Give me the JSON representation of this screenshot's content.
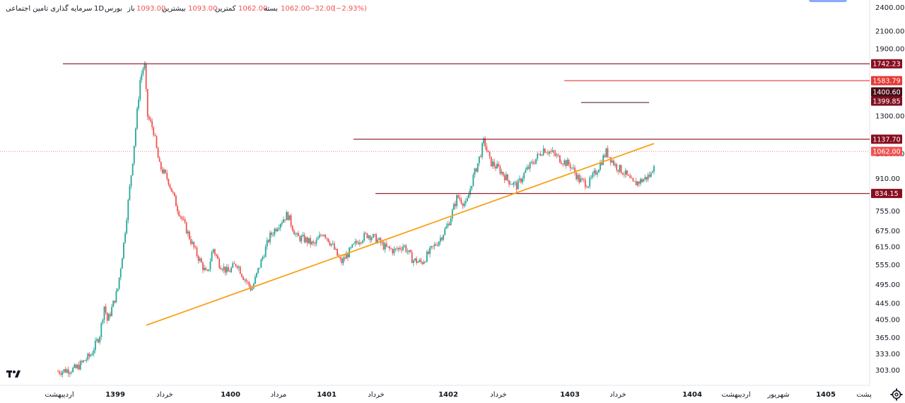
{
  "header": {
    "symbol": "سرمایه گذاری تامین اجتماعی",
    "interval": "1D",
    "exchange": "بورس",
    "open_label": "باز",
    "open": "1093.00",
    "high_label": "بیشترین",
    "high": "1093.00",
    "low_label": "کمترین",
    "low": "1062.00",
    "close_label": "بسته",
    "close": "1062.00",
    "change": "−32.00",
    "change_pct": "(−2.93%)"
  },
  "colors": {
    "up": "#26a69a",
    "down": "#ef5350",
    "trendline": "#f7a21b",
    "hline": "#880e1f",
    "hline_light": "#e53935",
    "grid_text": "#131722"
  },
  "icons": {
    "logo": "tradingview-logo-icon",
    "settings": "gear-icon"
  },
  "chart_data": {
    "type": "candlestick",
    "y_scale": "log",
    "ylim": [
      285,
      2500
    ],
    "y_ticks": [
      2400,
      2100,
      1900,
      1300,
      1050,
      910,
      755,
      675,
      615,
      555,
      495,
      445,
      405,
      365,
      333,
      303
    ],
    "y_tick_labels": [
      "2400.00",
      "2100.00",
      "1900.00",
      "1300.00",
      "1050.00",
      "910.00",
      "755.00",
      "675.00",
      "615.00",
      "555.00",
      "495.00",
      "445.00",
      "405.00",
      "365.00",
      "333.00",
      "303.00"
    ],
    "x_labels": [
      "اردیبهشت",
      "1399",
      "خرداد",
      "1400",
      "مرداد",
      "1401",
      "خرداد",
      "1402",
      "خرداد",
      "1403",
      "خرداد",
      "1404",
      "اردیبهشت",
      "شهریور",
      "1405",
      "پشت"
    ],
    "x_bold": [
      false,
      true,
      false,
      true,
      false,
      true,
      false,
      true,
      false,
      true,
      false,
      true,
      false,
      false,
      true,
      false
    ],
    "price_labels": [
      {
        "value": 1742.23,
        "text": "1742.23",
        "color": "#880e1f"
      },
      {
        "value": 1583.79,
        "text": "1583.79",
        "color": "#e53935"
      },
      {
        "value": 1400.6,
        "text": "1400.60",
        "color": "#4a0e16"
      },
      {
        "value": 1399.85,
        "text": "1399.85",
        "color": "#7f1020"
      },
      {
        "value": 1137.7,
        "text": "1137.70",
        "color": "#880e1f"
      },
      {
        "value": 1062.0,
        "text": "1062.00",
        "color": "#ef5350"
      },
      {
        "value": 834.15,
        "text": "834.15",
        "color": "#880e1f"
      }
    ],
    "horizontal_levels": [
      {
        "value": 1742.23,
        "from": "1399-اردیبهشت",
        "to": "end",
        "color": "#880e1f"
      },
      {
        "value": 1583.79,
        "from": "1403",
        "to": "end",
        "color": "#e53935"
      },
      {
        "value": 1399.85,
        "from": "1403-خرداد",
        "to": "1403-تیر",
        "color": "#4a0e16"
      },
      {
        "value": 1137.7,
        "from": "1401",
        "to": "end",
        "color": "#880e1f"
      },
      {
        "value": 834.15,
        "from": "1401",
        "to": "end",
        "color": "#880e1f"
      }
    ],
    "last_price": 1062.0,
    "trendline": [
      {
        "x": 0.12,
        "y": 390
      },
      {
        "x": 0.72,
        "y": 1130
      }
    ],
    "path": [
      [
        0.0,
        300
      ],
      [
        0.03,
        305
      ],
      [
        0.055,
        330
      ],
      [
        0.07,
        370
      ],
      [
        0.078,
        440
      ],
      [
        0.083,
        400
      ],
      [
        0.09,
        430
      ],
      [
        0.1,
        480
      ],
      [
        0.11,
        620
      ],
      [
        0.125,
        1000
      ],
      [
        0.138,
        1600
      ],
      [
        0.145,
        1750
      ],
      [
        0.15,
        1300
      ],
      [
        0.16,
        1200
      ],
      [
        0.17,
        980
      ],
      [
        0.185,
        900
      ],
      [
        0.2,
        770
      ],
      [
        0.215,
        680
      ],
      [
        0.23,
        600
      ],
      [
        0.24,
        560
      ],
      [
        0.25,
        520
      ],
      [
        0.26,
        610
      ],
      [
        0.27,
        560
      ],
      [
        0.285,
        530
      ],
      [
        0.3,
        560
      ],
      [
        0.31,
        520
      ],
      [
        0.325,
        480
      ],
      [
        0.34,
        560
      ],
      [
        0.355,
        650
      ],
      [
        0.37,
        700
      ],
      [
        0.385,
        740
      ],
      [
        0.4,
        650
      ],
      [
        0.415,
        640
      ],
      [
        0.43,
        620
      ],
      [
        0.445,
        670
      ],
      [
        0.46,
        620
      ],
      [
        0.475,
        560
      ],
      [
        0.49,
        600
      ],
      [
        0.505,
        640
      ],
      [
        0.52,
        660
      ],
      [
        0.535,
        640
      ],
      [
        0.55,
        610
      ],
      [
        0.565,
        600
      ],
      [
        0.58,
        620
      ],
      [
        0.595,
        570
      ],
      [
        0.61,
        560
      ],
      [
        0.625,
        600
      ],
      [
        0.64,
        640
      ],
      [
        0.655,
        700
      ],
      [
        0.67,
        820
      ],
      [
        0.685,
        780
      ],
      [
        0.695,
        900
      ],
      [
        0.705,
        1000
      ],
      [
        0.715,
        1130
      ],
      [
        0.725,
        1000
      ],
      [
        0.74,
        960
      ],
      [
        0.755,
        900
      ],
      [
        0.77,
        870
      ],
      [
        0.785,
        950
      ],
      [
        0.8,
        1010
      ],
      [
        0.815,
        1080
      ],
      [
        0.83,
        1050
      ],
      [
        0.845,
        1010
      ],
      [
        0.86,
        980
      ],
      [
        0.875,
        900
      ],
      [
        0.89,
        880
      ],
      [
        0.905,
        960
      ],
      [
        0.92,
        1060
      ],
      [
        0.935,
        980
      ],
      [
        0.95,
        940
      ],
      [
        0.965,
        880
      ],
      [
        0.98,
        900
      ],
      [
        0.995,
        930
      ],
      [
        1.0,
        1000
      ]
    ]
  }
}
